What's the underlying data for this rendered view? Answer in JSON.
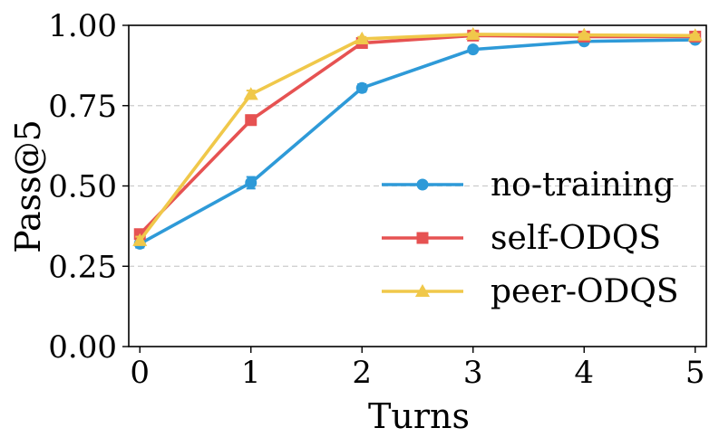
{
  "chart_data": {
    "type": "line",
    "xlabel": "Turns",
    "ylabel": "Pass@5",
    "x": [
      0,
      1,
      2,
      3,
      4,
      5
    ],
    "xlim": [
      -0.1,
      5.1
    ],
    "ylim": [
      0.0,
      1.0
    ],
    "xticks": [
      "0",
      "1",
      "2",
      "3",
      "4",
      "5"
    ],
    "yticks": [
      "0.00",
      "0.25",
      "0.50",
      "0.75",
      "1.00"
    ],
    "grid": "horizontal dashed",
    "legend_position": "bottom-right",
    "series": [
      {
        "name": "no-training",
        "color": "#2e9ad8",
        "marker": "circle",
        "values": [
          0.32,
          0.51,
          0.805,
          0.925,
          0.95,
          0.955
        ],
        "errors": [
          0.012,
          0.018,
          0.012,
          0.008,
          0.006,
          0.005
        ]
      },
      {
        "name": "self-ODQS",
        "color": "#e65252",
        "marker": "square",
        "values": [
          0.35,
          0.705,
          0.945,
          0.968,
          0.965,
          0.965
        ],
        "errors": [
          0.012,
          0.015,
          0.008,
          0.005,
          0.004,
          0.004
        ]
      },
      {
        "name": "peer-ODQS",
        "color": "#f0c84a",
        "marker": "triangle",
        "values": [
          0.33,
          0.785,
          0.958,
          0.972,
          0.97,
          0.968
        ],
        "errors": [
          0.012,
          0.012,
          0.006,
          0.004,
          0.004,
          0.004
        ]
      }
    ]
  }
}
